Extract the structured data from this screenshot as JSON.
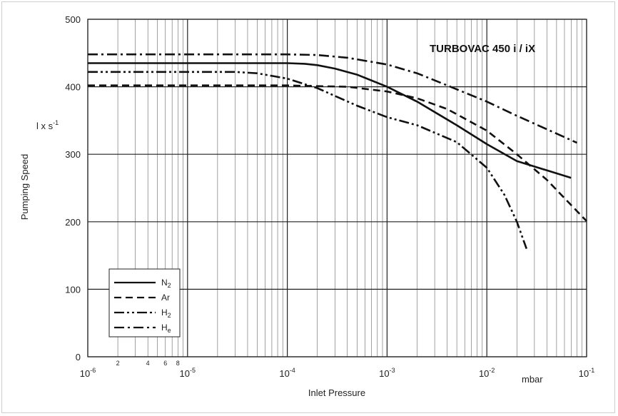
{
  "chart_data": {
    "type": "line",
    "title": "TURBOVAC 450 i / iX",
    "xlabel": "Inlet Pressure",
    "x_unit": "mbar",
    "ylabel": "Pumping Speed",
    "y_unit_label": "l x s",
    "y_unit_exponent": "-1",
    "x_scale": "log",
    "xlim": [
      1e-06,
      0.1
    ],
    "ylim": [
      0,
      500
    ],
    "grid": true,
    "legend_position": "bottom-left",
    "x_decade_ticks": [
      {
        "value": 1e-06,
        "base": "10",
        "exp": "-6"
      },
      {
        "value": 1e-05,
        "base": "10",
        "exp": "-5"
      },
      {
        "value": 0.0001,
        "base": "10",
        "exp": "-4"
      },
      {
        "value": 0.001,
        "base": "10",
        "exp": "-3"
      },
      {
        "value": 0.01,
        "base": "10",
        "exp": "-2"
      },
      {
        "value": 0.1,
        "base": "10",
        "exp": "-1"
      }
    ],
    "x_minor_labels": [
      {
        "value": 2e-06,
        "label": "2"
      },
      {
        "value": 4e-06,
        "label": "4"
      },
      {
        "value": 6e-06,
        "label": "6"
      },
      {
        "value": 8e-06,
        "label": "8"
      }
    ],
    "y_ticks": [
      {
        "value": 0,
        "label": "0"
      },
      {
        "value": 100,
        "label": "100"
      },
      {
        "value": 200,
        "label": "200"
      },
      {
        "value": 300,
        "label": "300"
      },
      {
        "value": 400,
        "label": "400"
      },
      {
        "value": 500,
        "label": "500"
      }
    ],
    "series": [
      {
        "name": "N",
        "sub": "2",
        "dash": "solid",
        "x": [
          1e-06,
          0.0001,
          0.00015,
          0.0002,
          0.0003,
          0.0005,
          0.001,
          0.002,
          0.005,
          0.01,
          0.02,
          0.07
        ],
        "y": [
          435,
          435,
          434,
          432,
          427,
          418,
          400,
          378,
          343,
          315,
          290,
          265
        ]
      },
      {
        "name": "Ar",
        "sub": "",
        "dash": "dash",
        "x": [
          1e-06,
          0.0001,
          0.0002,
          0.0004,
          0.001,
          0.002,
          0.004,
          0.01,
          0.02,
          0.04,
          0.1
        ],
        "y": [
          402,
          402,
          401,
          400,
          393,
          383,
          367,
          335,
          300,
          262,
          201
        ]
      },
      {
        "name": "H",
        "sub": "2",
        "dash": "dashdotdot",
        "x": [
          1e-06,
          3e-05,
          5e-05,
          0.0001,
          0.0002,
          0.0005,
          0.001,
          0.002,
          0.005,
          0.01,
          0.015,
          0.02,
          0.025
        ],
        "y": [
          422,
          422,
          420,
          412,
          398,
          372,
          355,
          343,
          318,
          280,
          240,
          200,
          160
        ]
      },
      {
        "name": "H",
        "sub": "e",
        "dash": "dashdot",
        "x": [
          1e-06,
          0.0001,
          0.0002,
          0.0004,
          0.001,
          0.002,
          0.004,
          0.01,
          0.02,
          0.04,
          0.08
        ],
        "y": [
          448,
          448,
          447,
          443,
          433,
          420,
          402,
          378,
          357,
          337,
          317
        ]
      }
    ]
  }
}
